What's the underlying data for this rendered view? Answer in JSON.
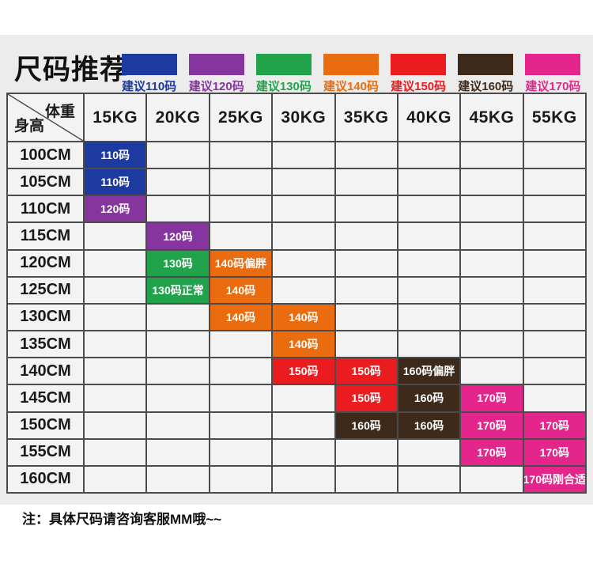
{
  "page": {
    "title": "尺码推荐",
    "note": "注：具体尺码请咨询客服MM哦~~"
  },
  "colors": {
    "blue": "#1c3aa0",
    "purple": "#86349e",
    "green": "#21a34c",
    "orange": "#eb6c0e",
    "red": "#ea1c1f",
    "brown": "#3e2a1a",
    "pink": "#e4268c",
    "gridline": "#4b4b4b",
    "cell_bg": "#f3f3f3",
    "band_bg": "#ececec"
  },
  "legend": [
    {
      "label": "建议110码",
      "color": "blue"
    },
    {
      "label": "建议120码",
      "color": "purple"
    },
    {
      "label": "建议130码",
      "color": "green"
    },
    {
      "label": "建议140码",
      "color": "orange"
    },
    {
      "label": "建议150码",
      "color": "red"
    },
    {
      "label": "建议160码",
      "color": "brown"
    },
    {
      "label": "建议170码",
      "color": "pink"
    }
  ],
  "chart_data": {
    "type": "table",
    "title": "尺码推荐",
    "corner": {
      "top_right": "体重",
      "bottom_left": "身高"
    },
    "columns": [
      "15KG",
      "20KG",
      "25KG",
      "30KG",
      "35KG",
      "40KG",
      "45KG",
      "55KG"
    ],
    "rows": [
      {
        "label": "100CM",
        "cells": [
          {
            "col": 0,
            "text": "110码",
            "color": "blue"
          }
        ]
      },
      {
        "label": "105CM",
        "cells": [
          {
            "col": 0,
            "text": "110码",
            "color": "blue"
          }
        ]
      },
      {
        "label": "110CM",
        "cells": [
          {
            "col": 0,
            "text": "120码",
            "color": "purple"
          }
        ]
      },
      {
        "label": "115CM",
        "cells": [
          {
            "col": 1,
            "text": "120码",
            "color": "purple"
          }
        ]
      },
      {
        "label": "120CM",
        "cells": [
          {
            "col": 1,
            "text": "130码",
            "color": "green"
          },
          {
            "col": 2,
            "text": "140码偏胖",
            "color": "orange"
          }
        ]
      },
      {
        "label": "125CM",
        "cells": [
          {
            "col": 1,
            "text": "130码正常",
            "color": "green"
          },
          {
            "col": 2,
            "text": "140码",
            "color": "orange"
          }
        ]
      },
      {
        "label": "130CM",
        "cells": [
          {
            "col": 2,
            "text": "140码",
            "color": "orange"
          },
          {
            "col": 3,
            "text": "140码",
            "color": "orange"
          }
        ]
      },
      {
        "label": "135CM",
        "cells": [
          {
            "col": 3,
            "text": "140码",
            "color": "orange"
          }
        ]
      },
      {
        "label": "140CM",
        "cells": [
          {
            "col": 3,
            "text": "150码",
            "color": "red"
          },
          {
            "col": 4,
            "text": "150码",
            "color": "red"
          },
          {
            "col": 5,
            "text": "160码偏胖",
            "color": "brown"
          }
        ]
      },
      {
        "label": "145CM",
        "cells": [
          {
            "col": 4,
            "text": "150码",
            "color": "red"
          },
          {
            "col": 5,
            "text": "160码",
            "color": "brown"
          },
          {
            "col": 6,
            "text": "170码",
            "color": "pink"
          }
        ]
      },
      {
        "label": "150CM",
        "cells": [
          {
            "col": 4,
            "text": "160码",
            "color": "brown"
          },
          {
            "col": 5,
            "text": "160码",
            "color": "brown"
          },
          {
            "col": 6,
            "text": "170码",
            "color": "pink"
          },
          {
            "col": 7,
            "text": "170码",
            "color": "pink"
          }
        ]
      },
      {
        "label": "155CM",
        "cells": [
          {
            "col": 6,
            "text": "170码",
            "color": "pink"
          },
          {
            "col": 7,
            "text": "170码",
            "color": "pink"
          }
        ]
      },
      {
        "label": "160CM",
        "cells": [
          {
            "col": 7,
            "text": "170码刚合适",
            "color": "pink"
          }
        ]
      }
    ]
  }
}
